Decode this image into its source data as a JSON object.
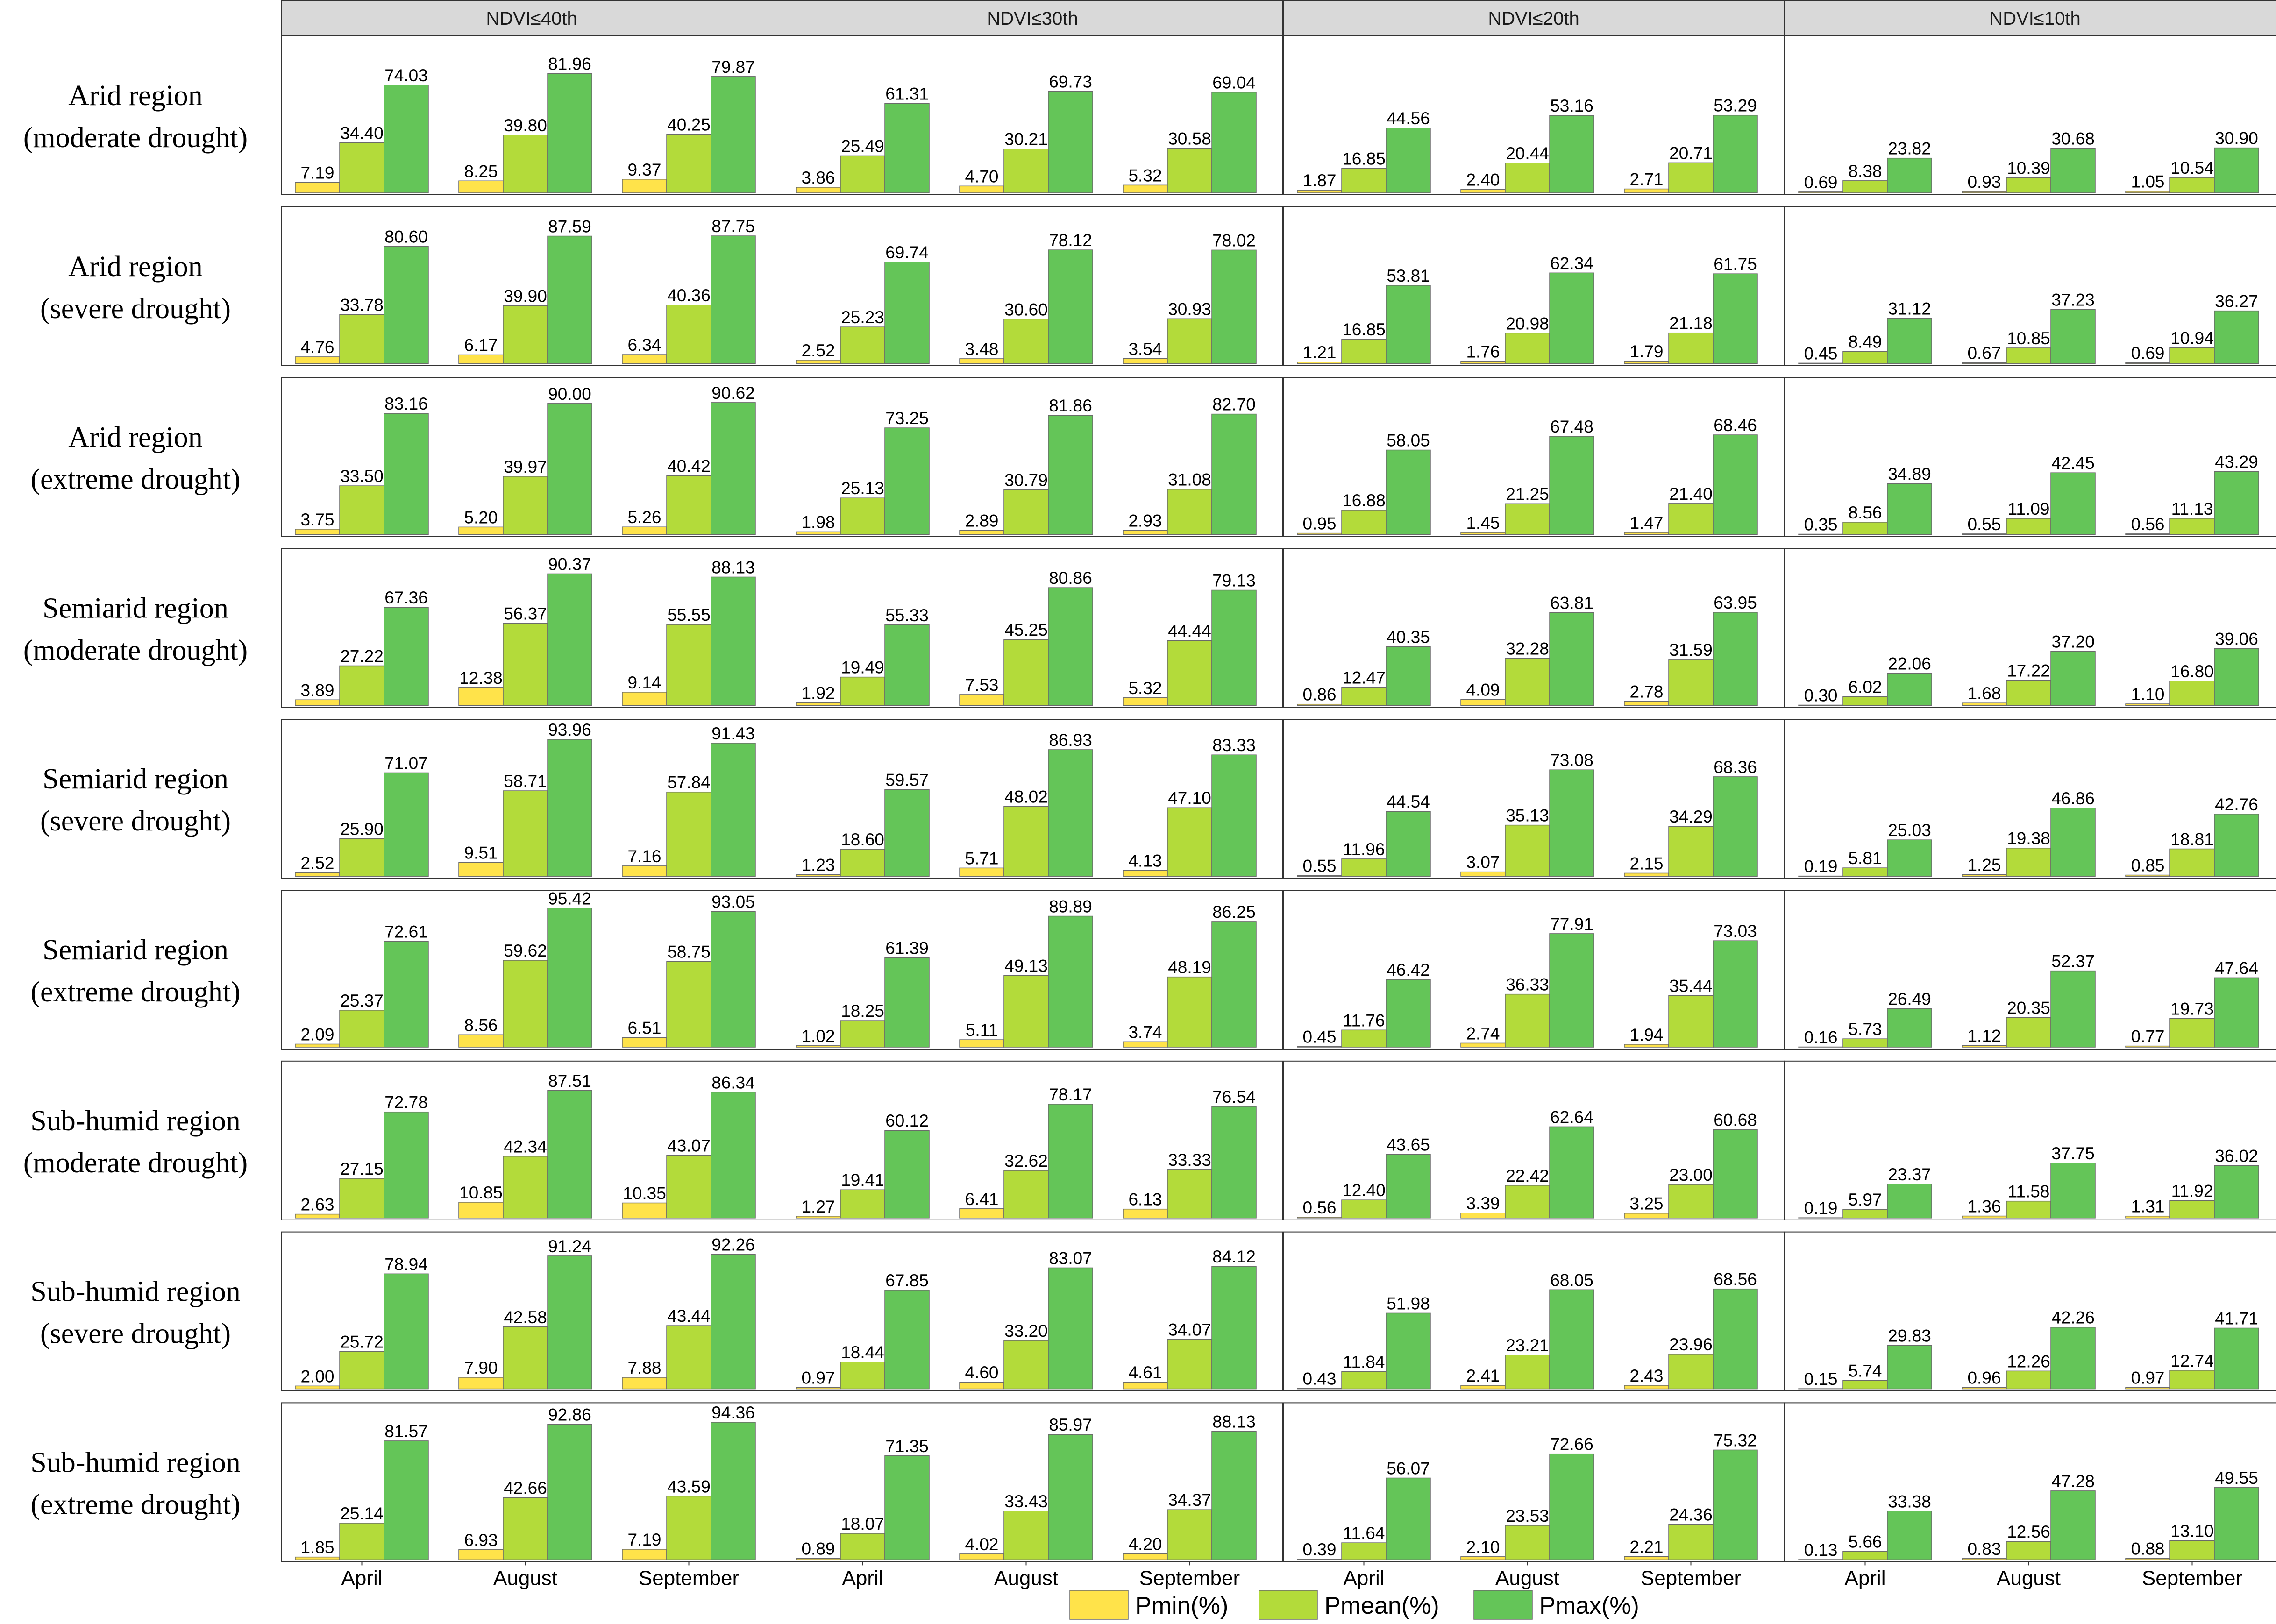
{
  "chart_data": {
    "type": "bar",
    "columns": [
      "NDVI≤40th",
      "NDVI≤30th",
      "NDVI≤20th",
      "NDVI≤10th"
    ],
    "rows": [
      [
        "Arid region",
        "(moderate drought)"
      ],
      [
        "Arid region",
        "(severe drought)"
      ],
      [
        "Arid region",
        "(extreme drought)"
      ],
      [
        "Semiarid region",
        "(moderate drought)"
      ],
      [
        "Semiarid region",
        "(severe drought)"
      ],
      [
        "Semiarid region",
        "(extreme drought)"
      ],
      [
        "Sub-humid region",
        "(moderate drought)"
      ],
      [
        "Sub-humid region",
        "(severe drought)"
      ],
      [
        "Sub-humid region",
        "(extreme drought)"
      ]
    ],
    "categories": [
      "April",
      "August",
      "September"
    ],
    "series_names": [
      "Pmin(%)",
      "Pmean(%)",
      "Pmax(%)"
    ],
    "colors": {
      "Pmin(%)": "#FFE34A",
      "Pmean(%)": "#B3DB3A",
      "Pmax(%)": "#64C558",
      "bar_stroke": "#6a6a6a",
      "strip_fill": "#d9d9d9",
      "panel_border": "#333333"
    },
    "ylim": [
      0,
      100
    ],
    "legend_position": "bottom",
    "grid": false,
    "values": [
      [
        [
          [
            7.19,
            34.4,
            74.03
          ],
          [
            8.25,
            39.8,
            81.96
          ],
          [
            9.37,
            40.25,
            79.87
          ]
        ],
        [
          [
            3.86,
            25.49,
            61.31
          ],
          [
            4.7,
            30.21,
            69.73
          ],
          [
            5.32,
            30.58,
            69.04
          ]
        ],
        [
          [
            1.87,
            16.85,
            44.56
          ],
          [
            2.4,
            20.44,
            53.16
          ],
          [
            2.71,
            20.71,
            53.29
          ]
        ],
        [
          [
            0.69,
            8.38,
            23.82
          ],
          [
            0.93,
            10.39,
            30.68
          ],
          [
            1.05,
            10.54,
            30.9
          ]
        ]
      ],
      [
        [
          [
            4.76,
            33.78,
            80.6
          ],
          [
            6.17,
            39.9,
            87.59
          ],
          [
            6.34,
            40.36,
            87.75
          ]
        ],
        [
          [
            2.52,
            25.23,
            69.74
          ],
          [
            3.48,
            30.6,
            78.12
          ],
          [
            3.54,
            30.93,
            78.02
          ]
        ],
        [
          [
            1.21,
            16.85,
            53.81
          ],
          [
            1.76,
            20.98,
            62.34
          ],
          [
            1.79,
            21.18,
            61.75
          ]
        ],
        [
          [
            0.45,
            8.49,
            31.12
          ],
          [
            0.67,
            10.85,
            37.23
          ],
          [
            0.69,
            10.94,
            36.27
          ]
        ]
      ],
      [
        [
          [
            3.75,
            33.5,
            83.16
          ],
          [
            5.2,
            39.97,
            90.0
          ],
          [
            5.26,
            40.42,
            90.62
          ]
        ],
        [
          [
            1.98,
            25.13,
            73.25
          ],
          [
            2.89,
            30.79,
            81.86
          ],
          [
            2.93,
            31.08,
            82.7
          ]
        ],
        [
          [
            0.95,
            16.88,
            58.05
          ],
          [
            1.45,
            21.25,
            67.48
          ],
          [
            1.47,
            21.4,
            68.46
          ]
        ],
        [
          [
            0.35,
            8.56,
            34.89
          ],
          [
            0.55,
            11.09,
            42.45
          ],
          [
            0.56,
            11.13,
            43.29
          ]
        ]
      ],
      [
        [
          [
            3.89,
            27.22,
            67.36
          ],
          [
            12.38,
            56.37,
            90.37
          ],
          [
            9.14,
            55.55,
            88.13
          ]
        ],
        [
          [
            1.92,
            19.49,
            55.33
          ],
          [
            7.53,
            45.25,
            80.86
          ],
          [
            5.32,
            44.44,
            79.13
          ]
        ],
        [
          [
            0.86,
            12.47,
            40.35
          ],
          [
            4.09,
            32.28,
            63.81
          ],
          [
            2.78,
            31.59,
            63.95
          ]
        ],
        [
          [
            0.3,
            6.02,
            22.06
          ],
          [
            1.68,
            17.22,
            37.2
          ],
          [
            1.1,
            16.8,
            39.06
          ]
        ]
      ],
      [
        [
          [
            2.52,
            25.9,
            71.07
          ],
          [
            9.51,
            58.71,
            93.96
          ],
          [
            7.16,
            57.84,
            91.43
          ]
        ],
        [
          [
            1.23,
            18.6,
            59.57
          ],
          [
            5.71,
            48.02,
            86.93
          ],
          [
            4.13,
            47.1,
            83.33
          ]
        ],
        [
          [
            0.55,
            11.96,
            44.54
          ],
          [
            3.07,
            35.13,
            73.08
          ],
          [
            2.15,
            34.29,
            68.36
          ]
        ],
        [
          [
            0.19,
            5.81,
            25.03
          ],
          [
            1.25,
            19.38,
            46.86
          ],
          [
            0.85,
            18.81,
            42.76
          ]
        ]
      ],
      [
        [
          [
            2.09,
            25.37,
            72.61
          ],
          [
            8.56,
            59.62,
            95.42
          ],
          [
            6.51,
            58.75,
            93.05
          ]
        ],
        [
          [
            1.02,
            18.25,
            61.39
          ],
          [
            5.11,
            49.13,
            89.89
          ],
          [
            3.74,
            48.19,
            86.25
          ]
        ],
        [
          [
            0.45,
            11.76,
            46.42
          ],
          [
            2.74,
            36.33,
            77.91
          ],
          [
            1.94,
            35.44,
            73.03
          ]
        ],
        [
          [
            0.16,
            5.73,
            26.49
          ],
          [
            1.12,
            20.35,
            52.37
          ],
          [
            0.77,
            19.73,
            47.64
          ]
        ]
      ],
      [
        [
          [
            2.63,
            27.15,
            72.78
          ],
          [
            10.85,
            42.34,
            87.51
          ],
          [
            10.35,
            43.07,
            86.34
          ]
        ],
        [
          [
            1.27,
            19.41,
            60.12
          ],
          [
            6.41,
            32.62,
            78.17
          ],
          [
            6.13,
            33.33,
            76.54
          ]
        ],
        [
          [
            0.56,
            12.4,
            43.65
          ],
          [
            3.39,
            22.42,
            62.64
          ],
          [
            3.25,
            23.0,
            60.68
          ]
        ],
        [
          [
            0.19,
            5.97,
            23.37
          ],
          [
            1.36,
            11.58,
            37.75
          ],
          [
            1.31,
            11.92,
            36.02
          ]
        ]
      ],
      [
        [
          [
            2.0,
            25.72,
            78.94
          ],
          [
            7.9,
            42.58,
            91.24
          ],
          [
            7.88,
            43.44,
            92.26
          ]
        ],
        [
          [
            0.97,
            18.44,
            67.85
          ],
          [
            4.6,
            33.2,
            83.07
          ],
          [
            4.61,
            34.07,
            84.12
          ]
        ],
        [
          [
            0.43,
            11.84,
            51.98
          ],
          [
            2.41,
            23.21,
            68.05
          ],
          [
            2.43,
            23.96,
            68.56
          ]
        ],
        [
          [
            0.15,
            5.74,
            29.83
          ],
          [
            0.96,
            12.26,
            42.26
          ],
          [
            0.97,
            12.74,
            41.71
          ]
        ]
      ],
      [
        [
          [
            1.85,
            25.14,
            81.57
          ],
          [
            6.93,
            42.66,
            92.86
          ],
          [
            7.19,
            43.59,
            94.36
          ]
        ],
        [
          [
            0.89,
            18.07,
            71.35
          ],
          [
            4.02,
            33.43,
            85.97
          ],
          [
            4.2,
            34.37,
            88.13
          ]
        ],
        [
          [
            0.39,
            11.64,
            56.07
          ],
          [
            2.1,
            23.53,
            72.66
          ],
          [
            2.21,
            24.36,
            75.32
          ]
        ],
        [
          [
            0.13,
            5.66,
            33.38
          ],
          [
            0.83,
            12.56,
            47.28
          ],
          [
            0.88,
            13.1,
            49.55
          ]
        ]
      ]
    ]
  }
}
